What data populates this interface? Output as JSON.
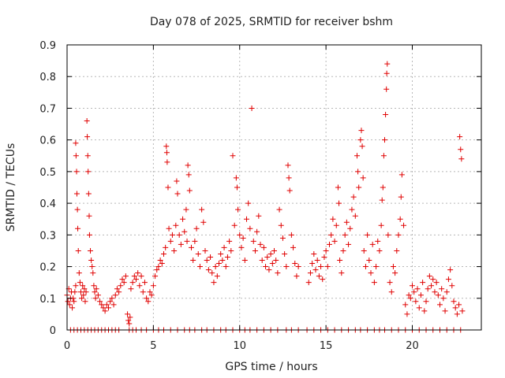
{
  "chart_data": {
    "type": "scatter",
    "title": "Day 078 of 2025, SRMTID for receiver bshm",
    "xlabel": "GPS time / hours",
    "ylabel": "SRMTID / TECUs",
    "xlim": [
      0,
      24.0
    ],
    "ylim": [
      0,
      0.9
    ],
    "xticks": [
      0,
      5,
      10,
      15,
      20
    ],
    "xtick_labels": [
      "0",
      "5",
      "10",
      "15",
      "20"
    ],
    "yticks": [
      0,
      0.1,
      0.2,
      0.3,
      0.4,
      0.5,
      0.6,
      0.7,
      0.8,
      0.9
    ],
    "ytick_labels": [
      "0",
      "0.1",
      "0.2",
      "0.3",
      "0.4",
      "0.5",
      "0.6",
      "0.7",
      "0.8",
      "0.9"
    ],
    "grid": true,
    "marker": "+",
    "color": "#e00000",
    "series": [
      {
        "name": "bshm",
        "points": [
          [
            0.0,
            0.11
          ],
          [
            0.05,
            0.09
          ],
          [
            0.1,
            0.13
          ],
          [
            0.15,
            0.08
          ],
          [
            0.2,
            0.1
          ],
          [
            0.25,
            0.12
          ],
          [
            0.3,
            0.07
          ],
          [
            0.35,
            0.1
          ],
          [
            0.4,
            0.09
          ],
          [
            0.45,
            0.12
          ],
          [
            0.5,
            0.14
          ],
          [
            0.5,
            0.59
          ],
          [
            0.52,
            0.55
          ],
          [
            0.55,
            0.5
          ],
          [
            0.57,
            0.43
          ],
          [
            0.6,
            0.38
          ],
          [
            0.62,
            0.32
          ],
          [
            0.65,
            0.25
          ],
          [
            0.7,
            0.18
          ],
          [
            0.75,
            0.15
          ],
          [
            0.8,
            0.12
          ],
          [
            0.85,
            0.1
          ],
          [
            0.9,
            0.14
          ],
          [
            0.95,
            0.11
          ],
          [
            1.0,
            0.13
          ],
          [
            1.05,
            0.09
          ],
          [
            1.1,
            0.12
          ],
          [
            1.15,
            0.66
          ],
          [
            1.17,
            0.61
          ],
          [
            1.2,
            0.55
          ],
          [
            1.22,
            0.5
          ],
          [
            1.25,
            0.43
          ],
          [
            1.28,
            0.36
          ],
          [
            1.3,
            0.3
          ],
          [
            1.35,
            0.25
          ],
          [
            1.4,
            0.22
          ],
          [
            1.45,
            0.2
          ],
          [
            1.5,
            0.18
          ],
          [
            1.55,
            0.14
          ],
          [
            1.6,
            0.12
          ],
          [
            1.65,
            0.1
          ],
          [
            1.7,
            0.13
          ],
          [
            1.8,
            0.11
          ],
          [
            1.9,
            0.09
          ],
          [
            2.0,
            0.08
          ],
          [
            2.1,
            0.07
          ],
          [
            2.2,
            0.06
          ],
          [
            2.3,
            0.08
          ],
          [
            2.4,
            0.07
          ],
          [
            2.5,
            0.09
          ],
          [
            2.6,
            0.1
          ],
          [
            2.7,
            0.08
          ],
          [
            2.8,
            0.11
          ],
          [
            2.9,
            0.13
          ],
          [
            3.0,
            0.12
          ],
          [
            3.1,
            0.14
          ],
          [
            3.2,
            0.16
          ],
          [
            3.3,
            0.15
          ],
          [
            3.4,
            0.17
          ],
          [
            3.5,
            0.05
          ],
          [
            3.55,
            0.03
          ],
          [
            3.6,
            0.02
          ],
          [
            3.65,
            0.04
          ],
          [
            3.7,
            0.13
          ],
          [
            3.8,
            0.15
          ],
          [
            3.9,
            0.17
          ],
          [
            4.0,
            0.16
          ],
          [
            4.1,
            0.18
          ],
          [
            4.2,
            0.14
          ],
          [
            4.3,
            0.17
          ],
          [
            4.4,
            0.12
          ],
          [
            4.5,
            0.15
          ],
          [
            4.6,
            0.1
          ],
          [
            4.7,
            0.09
          ],
          [
            4.8,
            0.12
          ],
          [
            4.9,
            0.11
          ],
          [
            5.0,
            0.14
          ],
          [
            5.1,
            0.17
          ],
          [
            5.2,
            0.19
          ],
          [
            5.3,
            0.2
          ],
          [
            5.4,
            0.22
          ],
          [
            5.5,
            0.21
          ],
          [
            5.6,
            0.24
          ],
          [
            5.7,
            0.26
          ],
          [
            5.75,
            0.58
          ],
          [
            5.78,
            0.56
          ],
          [
            5.8,
            0.53
          ],
          [
            5.85,
            0.45
          ],
          [
            5.9,
            0.32
          ],
          [
            6.0,
            0.28
          ],
          [
            6.1,
            0.3
          ],
          [
            6.2,
            0.25
          ],
          [
            6.3,
            0.33
          ],
          [
            6.35,
            0.47
          ],
          [
            6.4,
            0.43
          ],
          [
            6.5,
            0.3
          ],
          [
            6.6,
            0.27
          ],
          [
            6.7,
            0.35
          ],
          [
            6.8,
            0.31
          ],
          [
            6.9,
            0.38
          ],
          [
            6.95,
            0.28
          ],
          [
            7.0,
            0.52
          ],
          [
            7.05,
            0.49
          ],
          [
            7.1,
            0.44
          ],
          [
            7.2,
            0.26
          ],
          [
            7.3,
            0.22
          ],
          [
            7.4,
            0.28
          ],
          [
            7.5,
            0.32
          ],
          [
            7.6,
            0.24
          ],
          [
            7.7,
            0.2
          ],
          [
            7.8,
            0.38
          ],
          [
            7.9,
            0.34
          ],
          [
            8.0,
            0.25
          ],
          [
            8.1,
            0.22
          ],
          [
            8.2,
            0.19
          ],
          [
            8.3,
            0.23
          ],
          [
            8.4,
            0.18
          ],
          [
            8.5,
            0.15
          ],
          [
            8.6,
            0.2
          ],
          [
            8.7,
            0.17
          ],
          [
            8.8,
            0.21
          ],
          [
            8.9,
            0.24
          ],
          [
            9.0,
            0.22
          ],
          [
            9.1,
            0.26
          ],
          [
            9.2,
            0.2
          ],
          [
            9.3,
            0.23
          ],
          [
            9.4,
            0.28
          ],
          [
            9.5,
            0.25
          ],
          [
            9.6,
            0.55
          ],
          [
            9.7,
            0.33
          ],
          [
            9.8,
            0.48
          ],
          [
            9.85,
            0.45
          ],
          [
            9.9,
            0.38
          ],
          [
            10.0,
            0.3
          ],
          [
            10.1,
            0.26
          ],
          [
            10.2,
            0.29
          ],
          [
            10.3,
            0.22
          ],
          [
            10.4,
            0.35
          ],
          [
            10.5,
            0.4
          ],
          [
            10.6,
            0.32
          ],
          [
            10.7,
            0.7
          ],
          [
            10.8,
            0.28
          ],
          [
            10.9,
            0.25
          ],
          [
            11.0,
            0.31
          ],
          [
            11.1,
            0.36
          ],
          [
            11.2,
            0.27
          ],
          [
            11.3,
            0.22
          ],
          [
            11.4,
            0.26
          ],
          [
            11.5,
            0.2
          ],
          [
            11.6,
            0.23
          ],
          [
            11.7,
            0.19
          ],
          [
            11.8,
            0.24
          ],
          [
            11.9,
            0.21
          ],
          [
            12.0,
            0.25
          ],
          [
            12.1,
            0.22
          ],
          [
            12.2,
            0.18
          ],
          [
            12.3,
            0.38
          ],
          [
            12.4,
            0.33
          ],
          [
            12.5,
            0.29
          ],
          [
            12.6,
            0.24
          ],
          [
            12.7,
            0.2
          ],
          [
            12.8,
            0.52
          ],
          [
            12.85,
            0.48
          ],
          [
            12.9,
            0.44
          ],
          [
            13.0,
            0.3
          ],
          [
            13.1,
            0.26
          ],
          [
            13.2,
            0.21
          ],
          [
            13.3,
            0.17
          ],
          [
            13.4,
            0.2
          ],
          [
            14.0,
            0.15
          ],
          [
            14.1,
            0.18
          ],
          [
            14.2,
            0.21
          ],
          [
            14.3,
            0.24
          ],
          [
            14.4,
            0.19
          ],
          [
            14.5,
            0.22
          ],
          [
            14.6,
            0.17
          ],
          [
            14.7,
            0.2
          ],
          [
            14.8,
            0.16
          ],
          [
            14.9,
            0.23
          ],
          [
            15.0,
            0.25
          ],
          [
            15.1,
            0.2
          ],
          [
            15.2,
            0.27
          ],
          [
            15.3,
            0.3
          ],
          [
            15.4,
            0.35
          ],
          [
            15.5,
            0.28
          ],
          [
            15.6,
            0.33
          ],
          [
            15.7,
            0.45
          ],
          [
            15.75,
            0.4
          ],
          [
            15.8,
            0.22
          ],
          [
            15.9,
            0.18
          ],
          [
            16.0,
            0.25
          ],
          [
            16.1,
            0.3
          ],
          [
            16.2,
            0.34
          ],
          [
            16.3,
            0.27
          ],
          [
            16.4,
            0.32
          ],
          [
            16.5,
            0.38
          ],
          [
            16.6,
            0.42
          ],
          [
            16.7,
            0.36
          ],
          [
            16.8,
            0.55
          ],
          [
            16.85,
            0.5
          ],
          [
            16.9,
            0.45
          ],
          [
            17.0,
            0.6
          ],
          [
            17.05,
            0.63
          ],
          [
            17.1,
            0.58
          ],
          [
            17.15,
            0.48
          ],
          [
            17.2,
            0.25
          ],
          [
            17.3,
            0.2
          ],
          [
            17.4,
            0.3
          ],
          [
            17.5,
            0.22
          ],
          [
            17.6,
            0.18
          ],
          [
            17.7,
            0.27
          ],
          [
            17.8,
            0.15
          ],
          [
            17.9,
            0.2
          ],
          [
            18.0,
            0.28
          ],
          [
            18.1,
            0.25
          ],
          [
            18.2,
            0.33
          ],
          [
            18.25,
            0.41
          ],
          [
            18.3,
            0.45
          ],
          [
            18.35,
            0.55
          ],
          [
            18.4,
            0.6
          ],
          [
            18.45,
            0.68
          ],
          [
            18.5,
            0.76
          ],
          [
            18.52,
            0.81
          ],
          [
            18.55,
            0.84
          ],
          [
            18.6,
            0.3
          ],
          [
            18.7,
            0.15
          ],
          [
            18.8,
            0.12
          ],
          [
            18.9,
            0.2
          ],
          [
            19.0,
            0.18
          ],
          [
            19.1,
            0.25
          ],
          [
            19.2,
            0.3
          ],
          [
            19.3,
            0.35
          ],
          [
            19.35,
            0.42
          ],
          [
            19.4,
            0.49
          ],
          [
            19.5,
            0.33
          ],
          [
            19.6,
            0.08
          ],
          [
            19.7,
            0.05
          ],
          [
            19.8,
            0.11
          ],
          [
            19.9,
            0.1
          ],
          [
            20.0,
            0.14
          ],
          [
            20.1,
            0.12
          ],
          [
            20.2,
            0.09
          ],
          [
            20.3,
            0.13
          ],
          [
            20.4,
            0.07
          ],
          [
            20.5,
            0.11
          ],
          [
            20.6,
            0.15
          ],
          [
            20.7,
            0.06
          ],
          [
            20.8,
            0.09
          ],
          [
            20.9,
            0.13
          ],
          [
            21.0,
            0.17
          ],
          [
            21.1,
            0.14
          ],
          [
            21.2,
            0.16
          ],
          [
            21.3,
            0.12
          ],
          [
            21.4,
            0.15
          ],
          [
            21.5,
            0.11
          ],
          [
            21.6,
            0.08
          ],
          [
            21.7,
            0.13
          ],
          [
            21.8,
            0.1
          ],
          [
            21.9,
            0.06
          ],
          [
            22.0,
            0.12
          ],
          [
            22.1,
            0.16
          ],
          [
            22.2,
            0.19
          ],
          [
            22.3,
            0.14
          ],
          [
            22.4,
            0.09
          ],
          [
            22.5,
            0.07
          ],
          [
            22.6,
            0.05
          ],
          [
            22.7,
            0.08
          ],
          [
            22.75,
            0.61
          ],
          [
            22.8,
            0.57
          ],
          [
            22.85,
            0.54
          ],
          [
            22.9,
            0.06
          ]
        ],
        "zero_points": [
          0.2,
          0.4,
          0.6,
          0.8,
          1.0,
          1.2,
          1.4,
          1.6,
          1.8,
          2.0,
          2.2,
          2.4,
          2.6,
          2.8,
          3.0,
          3.6,
          3.8,
          4.0,
          4.3,
          4.6,
          5.0,
          5.3,
          5.6,
          6.0,
          6.4,
          6.8,
          7.1,
          7.4,
          7.8,
          8.1,
          8.5,
          8.9,
          9.2,
          9.6,
          10.0,
          10.3,
          10.6,
          11.0,
          11.4,
          11.8,
          12.2,
          12.7,
          13.0,
          13.4,
          13.9,
          14.3,
          14.7,
          15.1,
          15.5,
          15.9,
          16.3,
          16.7,
          17.0,
          17.4,
          17.8,
          18.1,
          18.4,
          18.8,
          19.2,
          19.6,
          20.0,
          20.4,
          20.8,
          21.2,
          21.6,
          22.0,
          22.4,
          22.8
        ]
      }
    ]
  }
}
